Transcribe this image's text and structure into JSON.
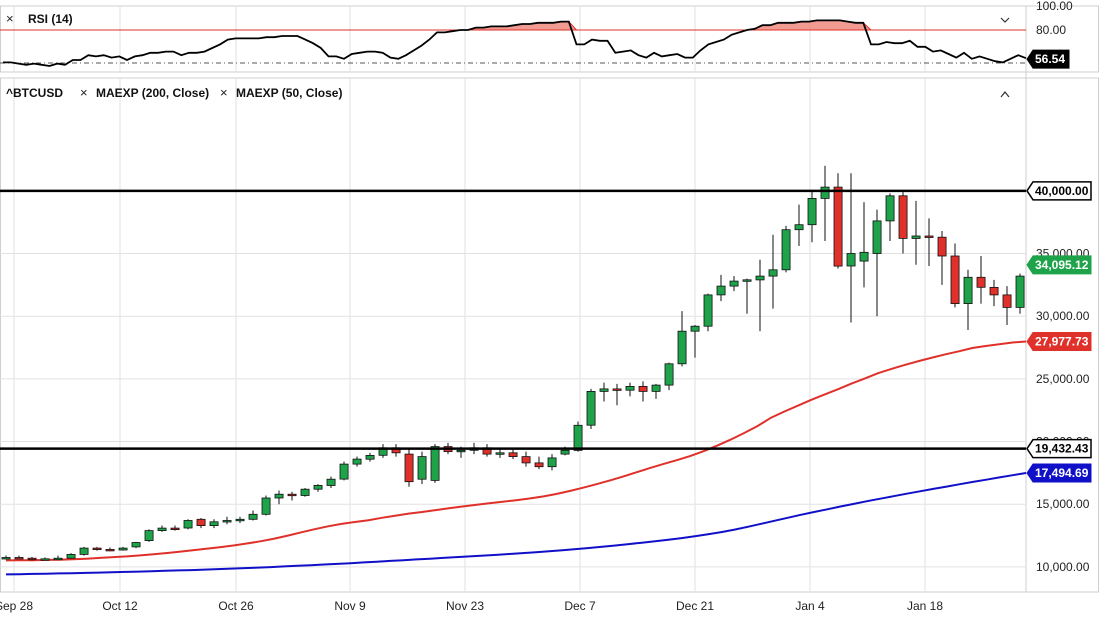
{
  "rsi_panel": {
    "title": "RSI (14)",
    "levels": [
      100,
      80
    ],
    "level_labels": [
      "100.00",
      "80.00"
    ],
    "current_label": "56.54",
    "values": [
      53,
      53,
      52,
      51,
      52,
      51,
      50,
      52,
      51,
      55,
      55,
      59,
      58,
      59,
      57,
      58,
      55,
      58,
      59,
      61,
      61,
      62,
      62,
      59,
      61,
      61,
      62,
      65,
      68,
      72,
      73,
      73,
      73,
      73,
      74,
      74,
      75,
      75,
      75,
      72,
      69,
      65,
      58,
      58,
      56,
      60,
      61,
      62,
      62,
      61,
      57,
      56,
      59,
      63,
      67,
      72,
      78,
      78,
      79,
      80,
      80,
      82,
      82,
      83,
      83,
      83,
      84,
      85,
      85,
      86,
      86,
      86,
      87,
      87,
      68,
      68,
      72,
      71,
      71,
      61,
      62,
      63,
      59,
      57,
      61,
      58,
      59,
      60,
      57,
      57,
      63,
      68,
      70,
      72,
      76,
      78,
      80,
      81,
      84,
      84,
      86,
      86,
      86,
      87,
      87,
      88,
      88,
      88,
      88,
      87,
      86,
      86,
      68,
      68,
      70,
      69,
      69,
      71,
      66,
      66,
      62,
      63,
      60,
      57,
      61,
      56,
      58,
      56,
      54,
      53,
      56,
      59,
      56.54
    ]
  },
  "price_panel": {
    "symbol": "^BTCUSD",
    "legend": [
      {
        "name": "MAEXP (200, Close)",
        "color": "#1010c8"
      },
      {
        "name": "MAEXP (50, Close)",
        "color": "#e0302a"
      }
    ],
    "horizontal_lines": [
      {
        "value": 40000,
        "label": "40,000.00",
        "color": "#000000"
      },
      {
        "value": 19432.43,
        "label": "19,432.43",
        "color": "#000000"
      }
    ],
    "price_badges": [
      {
        "value": 34095.12,
        "label": "34,095.12",
        "color": "#1ea34a"
      },
      {
        "value": 27977.73,
        "label": "27,977.73",
        "color": "#e0302a"
      },
      {
        "value": 17494.69,
        "label": "17,494.69",
        "color": "#1010c8"
      }
    ]
  },
  "chart_data": {
    "type": "candlestick",
    "x_tick_labels": [
      "Sep 28",
      "Oct 12",
      "Oct 26",
      "Nov 9",
      "Nov 23",
      "Dec 7",
      "Dec 21",
      "Jan 4",
      "Jan 18"
    ],
    "y_tick_labels": [
      "10,000.00",
      "15,000.00",
      "20,000.00",
      "25,000.00",
      "30,000.00",
      "35,000.00"
    ],
    "ylim": [
      8000,
      49000
    ],
    "candles": [
      {
        "date": "Sep 28",
        "o": 10700,
        "h": 10900,
        "l": 10600,
        "c": 10750
      },
      {
        "date": "Sep 30",
        "o": 10750,
        "h": 10900,
        "l": 10650,
        "c": 10700
      },
      {
        "date": "Oct 2",
        "o": 10700,
        "h": 10800,
        "l": 10500,
        "c": 10600
      },
      {
        "date": "Oct 5",
        "o": 10600,
        "h": 10750,
        "l": 10550,
        "c": 10650
      },
      {
        "date": "Oct 7",
        "o": 10650,
        "h": 10900,
        "l": 10600,
        "c": 10700
      },
      {
        "date": "Oct 9",
        "o": 10700,
        "h": 11100,
        "l": 10650,
        "c": 11000
      },
      {
        "date": "Oct 12",
        "o": 11000,
        "h": 11600,
        "l": 10900,
        "c": 11500
      },
      {
        "date": "Oct 14",
        "o": 11500,
        "h": 11600,
        "l": 11300,
        "c": 11400
      },
      {
        "date": "Oct 16",
        "o": 11400,
        "h": 11550,
        "l": 11250,
        "c": 11350
      },
      {
        "date": "Oct 19",
        "o": 11350,
        "h": 11600,
        "l": 11300,
        "c": 11500
      },
      {
        "date": "Oct 21",
        "o": 11600,
        "h": 12000,
        "l": 11500,
        "c": 11950
      },
      {
        "date": "Oct 23",
        "o": 12100,
        "h": 13000,
        "l": 12000,
        "c": 12900
      },
      {
        "date": "Oct 26",
        "o": 12900,
        "h": 13300,
        "l": 12800,
        "c": 13100
      },
      {
        "date": "Oct 28",
        "o": 13100,
        "h": 13300,
        "l": 12900,
        "c": 13000
      },
      {
        "date": "Oct 30",
        "o": 13100,
        "h": 13800,
        "l": 13000,
        "c": 13700
      },
      {
        "date": "Nov 2",
        "o": 13800,
        "h": 13900,
        "l": 13100,
        "c": 13300
      },
      {
        "date": "Nov 4",
        "o": 13300,
        "h": 13800,
        "l": 13100,
        "c": 13600
      },
      {
        "date": "Nov 6",
        "o": 13600,
        "h": 14000,
        "l": 13400,
        "c": 13700
      },
      {
        "date": "Nov 9",
        "o": 13700,
        "h": 14000,
        "l": 13500,
        "c": 13800
      },
      {
        "date": "Nov 11",
        "o": 13800,
        "h": 14500,
        "l": 13700,
        "c": 14200
      },
      {
        "date": "Nov 13",
        "o": 14200,
        "h": 15700,
        "l": 14100,
        "c": 15500
      },
      {
        "date": "Nov 16",
        "o": 15500,
        "h": 16100,
        "l": 15000,
        "c": 15800
      },
      {
        "date": "Nov 18",
        "o": 15800,
        "h": 16000,
        "l": 15300,
        "c": 15700
      },
      {
        "date": "Nov 20",
        "o": 15700,
        "h": 16300,
        "l": 15600,
        "c": 16200
      },
      {
        "date": "Nov 23",
        "o": 16200,
        "h": 16600,
        "l": 16000,
        "c": 16500
      },
      {
        "date": "Nov 25",
        "o": 16500,
        "h": 17200,
        "l": 16300,
        "c": 17000
      },
      {
        "date": "Nov 27",
        "o": 17000,
        "h": 18400,
        "l": 16900,
        "c": 18200
      },
      {
        "date": "Nov 30",
        "o": 18200,
        "h": 18800,
        "l": 18000,
        "c": 18600
      },
      {
        "date": "Dec 2",
        "o": 18600,
        "h": 19100,
        "l": 18400,
        "c": 18900
      },
      {
        "date": "Dec 4",
        "o": 18900,
        "h": 19800,
        "l": 18700,
        "c": 19500
      },
      {
        "date": "Dec 7",
        "o": 19500,
        "h": 19800,
        "l": 18800,
        "c": 19100
      },
      {
        "date": "Dec 9",
        "o": 19000,
        "h": 19500,
        "l": 16400,
        "c": 16800
      },
      {
        "date": "Dec 11",
        "o": 17000,
        "h": 19200,
        "l": 16600,
        "c": 18800
      },
      {
        "date": "Dec 14",
        "o": 16900,
        "h": 19800,
        "l": 16700,
        "c": 19600
      },
      {
        "date": "Dec 16",
        "o": 19600,
        "h": 19900,
        "l": 19000,
        "c": 19200
      },
      {
        "date": "Dec 18",
        "o": 19200,
        "h": 19600,
        "l": 18700,
        "c": 19300
      },
      {
        "date": "Dec 21",
        "o": 19300,
        "h": 19900,
        "l": 19000,
        "c": 19500
      },
      {
        "date": "Dec 23",
        "o": 19500,
        "h": 19800,
        "l": 18800,
        "c": 19000
      },
      {
        "date": "Dec 25",
        "o": 19000,
        "h": 19400,
        "l": 18700,
        "c": 19100
      },
      {
        "date": "Dec 28",
        "o": 19100,
        "h": 19500,
        "l": 18600,
        "c": 18800
      },
      {
        "date": "Dec 30",
        "o": 18800,
        "h": 19200,
        "l": 18000,
        "c": 18300
      },
      {
        "date": "Jan 1",
        "o": 18300,
        "h": 18800,
        "l": 17800,
        "c": 18000
      },
      {
        "date": "Jan 3",
        "o": 18000,
        "h": 19000,
        "l": 17700,
        "c": 18700
      },
      {
        "date": "Jan 5",
        "o": 19000,
        "h": 19600,
        "l": 18900,
        "c": 19300
      },
      {
        "date": "Jan 6",
        "o": 19300,
        "h": 21600,
        "l": 19200,
        "c": 21300
      },
      {
        "date": "Jan 7",
        "o": 21300,
        "h": 24200,
        "l": 21000,
        "c": 24000
      },
      {
        "date": "Jan 8",
        "o": 24000,
        "h": 24700,
        "l": 23200,
        "c": 24200
      },
      {
        "date": "Jan 9",
        "o": 24200,
        "h": 24600,
        "l": 22900,
        "c": 24100
      },
      {
        "date": "Jan 10",
        "o": 24100,
        "h": 24700,
        "l": 23600,
        "c": 24400
      },
      {
        "date": "Jan 11",
        "o": 24400,
        "h": 24800,
        "l": 23200,
        "c": 24000
      },
      {
        "date": "Jan 12",
        "o": 24000,
        "h": 24600,
        "l": 23400,
        "c": 24500
      },
      {
        "date": "Jan 13",
        "o": 24500,
        "h": 26300,
        "l": 24100,
        "c": 26200
      },
      {
        "date": "Jan 14",
        "o": 26200,
        "h": 30400,
        "l": 26000,
        "c": 28800
      },
      {
        "date": "Jan 15",
        "o": 28800,
        "h": 29300,
        "l": 26700,
        "c": 29200
      },
      {
        "date": "Jan 16",
        "o": 29200,
        "h": 31800,
        "l": 28800,
        "c": 31700
      },
      {
        "date": "Jan 17",
        "o": 31700,
        "h": 33300,
        "l": 31200,
        "c": 32400
      },
      {
        "date": "Jan 18",
        "o": 32400,
        "h": 33200,
        "l": 32000,
        "c": 32800
      },
      {
        "date": "Jan 19",
        "o": 32800,
        "h": 33000,
        "l": 30200,
        "c": 32900
      },
      {
        "date": "Jan 20",
        "o": 32900,
        "h": 34500,
        "l": 28800,
        "c": 33200
      },
      {
        "date": "Jan 21",
        "o": 33200,
        "h": 36500,
        "l": 30600,
        "c": 33700
      },
      {
        "date": "Jan 22",
        "o": 33700,
        "h": 37200,
        "l": 33500,
        "c": 36900
      },
      {
        "date": "Jan 23",
        "o": 36900,
        "h": 38900,
        "l": 35600,
        "c": 37300
      },
      {
        "date": "Jan 24",
        "o": 37300,
        "h": 40000,
        "l": 35900,
        "c": 39400
      },
      {
        "date": "Jan 25",
        "o": 39400,
        "h": 42000,
        "l": 36000,
        "c": 40300
      },
      {
        "date": "Jan 26",
        "o": 40300,
        "h": 41400,
        "l": 33800,
        "c": 34000
      },
      {
        "date": "Jan 27",
        "o": 34000,
        "h": 41400,
        "l": 29500,
        "c": 35000
      },
      {
        "date": "Jan 28",
        "o": 34400,
        "h": 39100,
        "l": 32300,
        "c": 35100
      },
      {
        "date": "Jan 29",
        "o": 35000,
        "h": 38500,
        "l": 30000,
        "c": 37600
      },
      {
        "date": "Jan 30",
        "o": 37600,
        "h": 39800,
        "l": 36000,
        "c": 39600
      },
      {
        "date": "Jan 31",
        "o": 39600,
        "h": 39900,
        "l": 35000,
        "c": 36200
      },
      {
        "date": "Feb 1",
        "o": 36200,
        "h": 39200,
        "l": 34100,
        "c": 36400
      },
      {
        "date": "Feb 2",
        "o": 36400,
        "h": 37800,
        "l": 34000,
        "c": 36300
      },
      {
        "date": "Feb 3",
        "o": 36300,
        "h": 36800,
        "l": 32500,
        "c": 34800
      },
      {
        "date": "Feb 4",
        "o": 34800,
        "h": 35800,
        "l": 30700,
        "c": 31000
      },
      {
        "date": "Feb 5",
        "o": 31000,
        "h": 33700,
        "l": 28900,
        "c": 33100
      },
      {
        "date": "Feb 6",
        "o": 33100,
        "h": 34800,
        "l": 31000,
        "c": 32300
      },
      {
        "date": "Feb 7",
        "o": 32300,
        "h": 32900,
        "l": 30800,
        "c": 31700
      },
      {
        "date": "Feb 8",
        "o": 31700,
        "h": 32400,
        "l": 29300,
        "c": 30700
      },
      {
        "date": "Feb 9",
        "o": 30700,
        "h": 33400,
        "l": 30200,
        "c": 33200
      }
    ],
    "series": [
      {
        "name": "MAEXP (50, Close)",
        "color": "#e0302a",
        "values": [
          10520,
          10530,
          10540,
          10560,
          10580,
          10610,
          10660,
          10720,
          10780,
          10840,
          10920,
          11010,
          11110,
          11220,
          11340,
          11460,
          11580,
          11720,
          11880,
          12050,
          12260,
          12500,
          12760,
          13010,
          13240,
          13430,
          13580,
          13730,
          13920,
          14080,
          14250,
          14380,
          14530,
          14680,
          14820,
          14950,
          15080,
          15200,
          15320,
          15460,
          15620,
          15820,
          16060,
          16320,
          16600,
          16900,
          17220,
          17560,
          17900,
          18220,
          18520,
          18860,
          19240,
          19680,
          20160,
          20680,
          21240,
          21900,
          22400,
          22860,
          23330,
          23760,
          24180,
          24620,
          25040,
          25460,
          25800,
          26120,
          26420,
          26700,
          26960,
          27200,
          27460,
          27620,
          27770,
          27900,
          27977.73
        ]
      },
      {
        "name": "MAEXP (200, Close)",
        "color": "#1010c8",
        "values": [
          9400,
          9420,
          9440,
          9460,
          9480,
          9500,
          9520,
          9545,
          9570,
          9600,
          9630,
          9660,
          9690,
          9720,
          9750,
          9790,
          9830,
          9870,
          9910,
          9950,
          9990,
          10040,
          10090,
          10140,
          10190,
          10240,
          10300,
          10360,
          10420,
          10480,
          10540,
          10600,
          10660,
          10720,
          10780,
          10840,
          10900,
          10960,
          11030,
          11100,
          11170,
          11250,
          11330,
          11420,
          11510,
          11610,
          11710,
          11820,
          11930,
          12050,
          12170,
          12300,
          12440,
          12600,
          12780,
          12980,
          13200,
          13440,
          13680,
          13920,
          14160,
          14380,
          14600,
          14820,
          15030,
          15240,
          15440,
          15640,
          15840,
          16030,
          16220,
          16410,
          16600,
          16780,
          16960,
          17140,
          17320,
          17494.69
        ]
      }
    ]
  }
}
